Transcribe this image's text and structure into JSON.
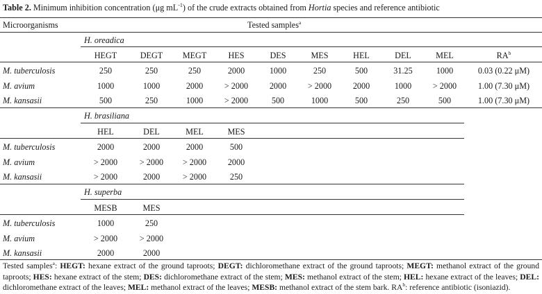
{
  "caption": {
    "label": "Table 2.",
    "text_before": " Minimum inhibition concentration (μg mL",
    "text_sup": "-1",
    "text_mid": ") of the crude extracts obtained from ",
    "text_italic": "Hortia",
    "text_after": " species and reference antibiotic"
  },
  "header": {
    "microorganisms": "Microorganisms",
    "tested_samples": "Tested samples",
    "tested_samples_sup": "a"
  },
  "sections": [
    {
      "species": "H. oreadica",
      "columns": [
        "HEGT",
        "DEGT",
        "MEGT",
        "HES",
        "DES",
        "MES",
        "HEL",
        "DEL",
        "MEL",
        "RA"
      ],
      "rows": [
        {
          "organism": "M. tuberculosis",
          "values": [
            "250",
            "250",
            "250",
            "2000",
            "1000",
            "250",
            "500",
            "31.25",
            "1000",
            "0.03 (0.22 μM)"
          ]
        },
        {
          "organism": "M. avium",
          "values": [
            "1000",
            "1000",
            "2000",
            "> 2000",
            "2000",
            "> 2000",
            "2000",
            "1000",
            "> 2000",
            "1.00 (7.30 μM)"
          ]
        },
        {
          "organism": "M. kansasii",
          "values": [
            "500",
            "250",
            "1000",
            "> 2000",
            "500",
            "1000",
            "500",
            "250",
            "500",
            "1.00 (7.30 μM)"
          ]
        }
      ]
    },
    {
      "species": "H. brasiliana",
      "columns": [
        "HEL",
        "DEL",
        "MEL",
        "MES"
      ],
      "rows": [
        {
          "organism": "M. tuberculosis",
          "values": [
            "2000",
            "2000",
            "2000",
            "500"
          ]
        },
        {
          "organism": "M. avium",
          "values": [
            "> 2000",
            "> 2000",
            "> 2000",
            "2000"
          ]
        },
        {
          "organism": "M. kansasii",
          "values": [
            "> 2000",
            "2000",
            "> 2000",
            "250"
          ]
        }
      ]
    },
    {
      "species": "H. superba",
      "columns": [
        "MESB",
        "MES"
      ],
      "rows": [
        {
          "organism": "M. tuberculosis",
          "values": [
            "1000",
            "250"
          ]
        },
        {
          "organism": "M. avium",
          "values": [
            "> 2000",
            "> 2000"
          ]
        },
        {
          "organism": "M. kansasii",
          "values": [
            "2000",
            "2000"
          ]
        }
      ]
    }
  ],
  "ra_sup": "b",
  "footnote": {
    "lead": "Tested samples",
    "lead_sup": "a",
    "items": [
      {
        "abbr": "HEGT:",
        "text": " hexane extract of the ground taproots; "
      },
      {
        "abbr": "DEGT:",
        "text": " dichloromethane extract of the ground taproots; "
      },
      {
        "abbr": "MEGT:",
        "text": " methanol extract of the ground taproots; "
      },
      {
        "abbr": "HES:",
        "text": " hexane extract of the stem; "
      },
      {
        "abbr": "DES:",
        "text": " dichloromethane extract of the stem; "
      },
      {
        "abbr": "MES:",
        "text": " methanol extract of the stem; "
      },
      {
        "abbr": "HEL:",
        "text": " hexane extract of the leaves; "
      },
      {
        "abbr": "DEL:",
        "text": " dichloromethane extract of the leaves; "
      },
      {
        "abbr": "MEL:",
        "text": " methanol extract of the leaves; "
      },
      {
        "abbr": "MESB:",
        "text": " methanol extract of the stem bark. "
      }
    ],
    "ra_label": "RA",
    "ra_sup": "b",
    "ra_text": ": reference antibiotic (isoniazid)."
  }
}
